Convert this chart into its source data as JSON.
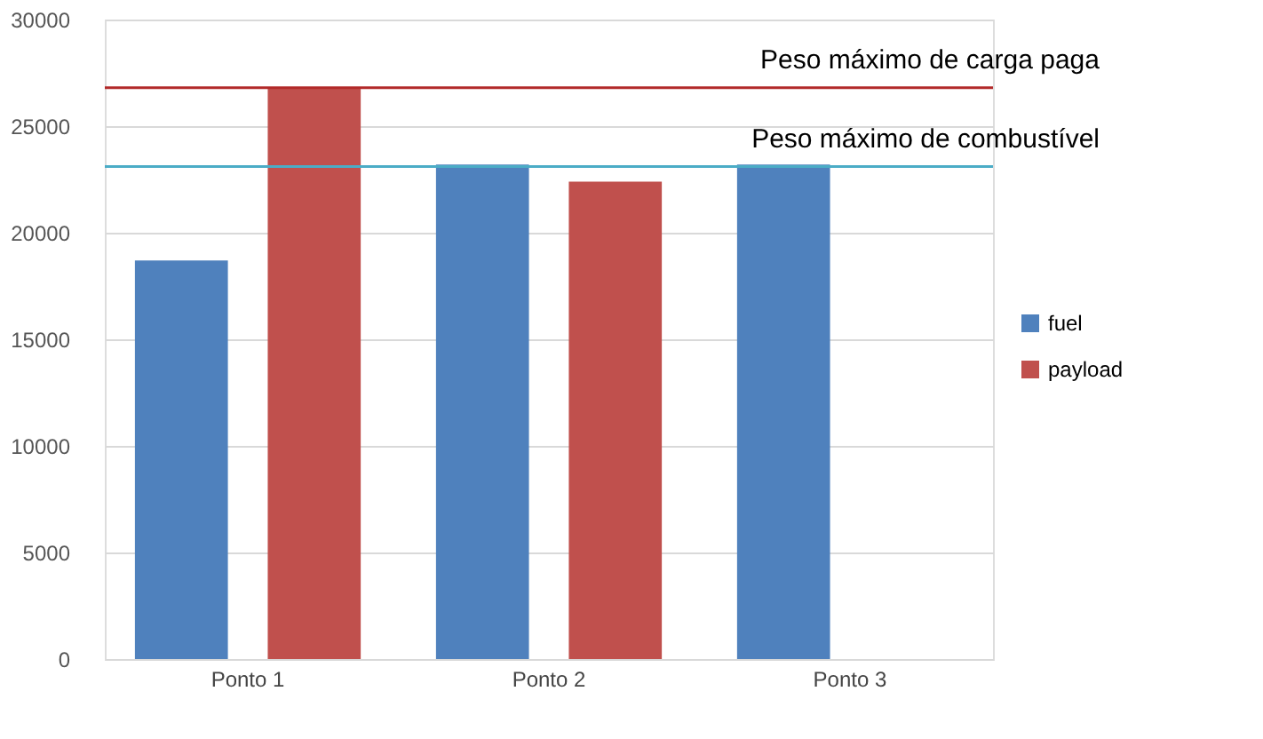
{
  "chart_data": {
    "type": "bar",
    "categories": [
      "Ponto 1",
      "Ponto 2",
      "Ponto 3"
    ],
    "series": [
      {
        "name": "fuel",
        "color": "#4f81bd",
        "values": [
          18700,
          23200,
          23200
        ]
      },
      {
        "name": "payload",
        "color": "#c0504d",
        "values": [
          26800,
          22400,
          null
        ]
      }
    ],
    "ylim": [
      0,
      30000
    ],
    "yticks": [
      0,
      5000,
      10000,
      15000,
      20000,
      25000,
      30000
    ],
    "grid": "y",
    "legend": "right",
    "ref_lines": [
      {
        "axis": "y",
        "value": 26800,
        "label": "Peso máximo de carga paga",
        "color": "#b22a2a"
      },
      {
        "axis": "y",
        "value": 23100,
        "label": "Peso máximo de combustível",
        "color": "#4bacc6"
      }
    ]
  }
}
